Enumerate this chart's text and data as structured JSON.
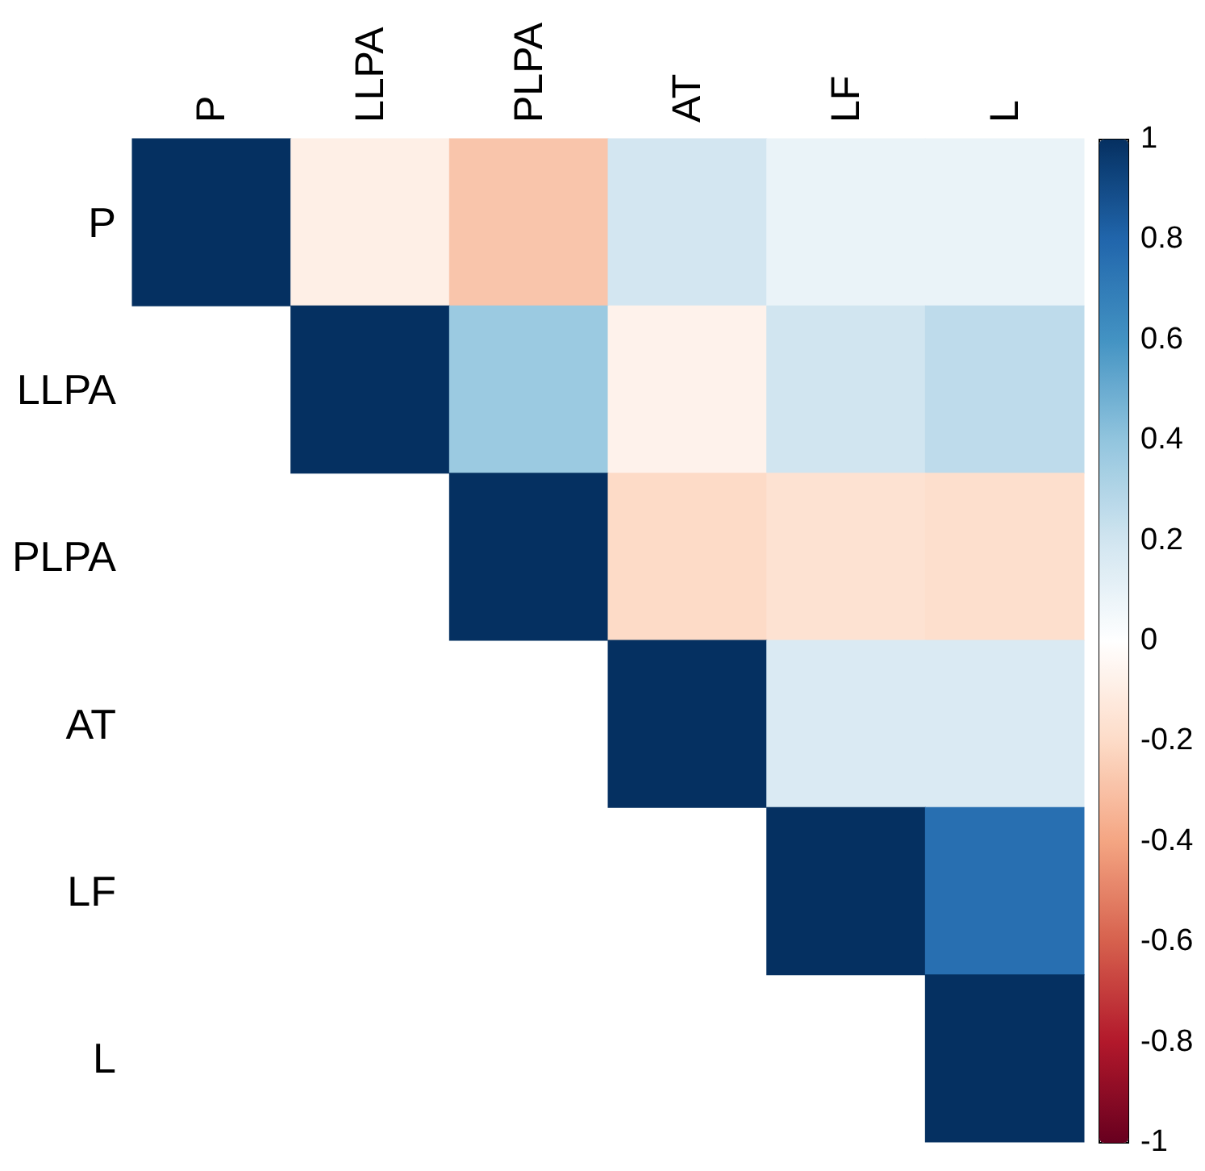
{
  "chart_data": {
    "type": "heatmap",
    "categories": [
      "P",
      "LLPA",
      "PLPA",
      "AT",
      "LF",
      "L"
    ],
    "y_categories": [
      "P",
      "LLPA",
      "PLPA",
      "AT",
      "LF",
      "L"
    ],
    "cells": [
      [
        1,
        -0.09,
        -0.28,
        0.19,
        0.09,
        0.09
      ],
      [
        null,
        1,
        0.37,
        -0.07,
        0.2,
        0.26
      ],
      [
        null,
        null,
        1,
        -0.2,
        -0.16,
        -0.18
      ],
      [
        null,
        null,
        null,
        1,
        0.16,
        0.16
      ],
      [
        null,
        null,
        null,
        null,
        1,
        0.76
      ],
      [
        null,
        null,
        null,
        null,
        null,
        1
      ]
    ],
    "clim": [
      -1,
      1
    ],
    "cticks": [
      -1,
      -0.8,
      -0.6,
      -0.4,
      -0.2,
      0,
      0.2,
      0.4,
      0.6,
      0.8,
      1
    ]
  }
}
